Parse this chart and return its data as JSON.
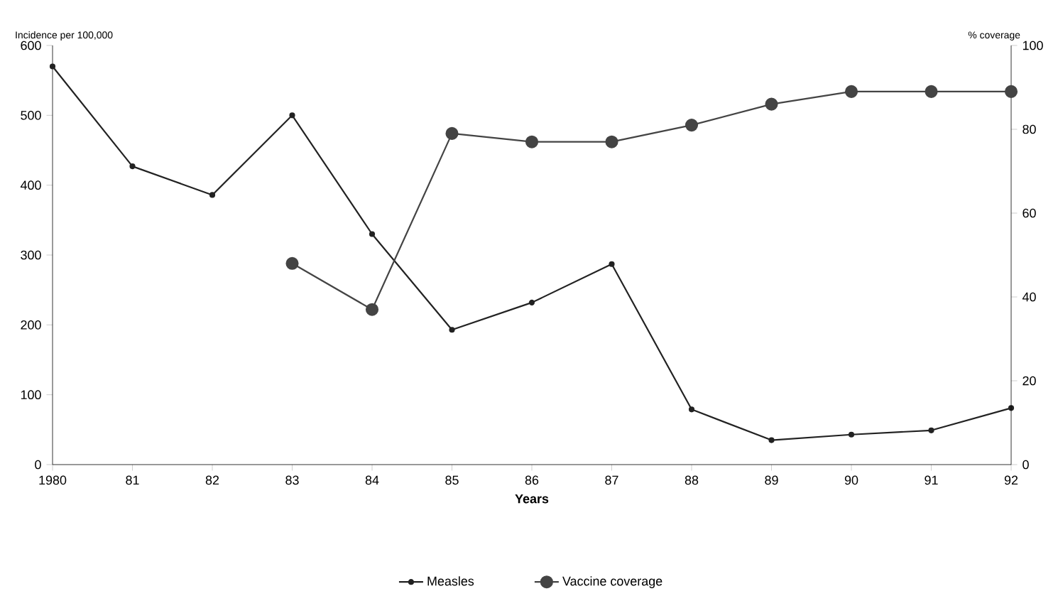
{
  "chart_data": {
    "type": "line",
    "xlabel": "Years",
    "ylabel": "Incidence per 100,000",
    "y2label": "% coverage",
    "xlim": [
      1980,
      1992
    ],
    "xticks": [
      1980,
      {
        "value": 1981,
        "label": "81"
      },
      {
        "value": 1982,
        "label": "82"
      },
      {
        "value": 1983,
        "label": "83"
      },
      {
        "value": 1984,
        "label": "84"
      },
      {
        "value": 1985,
        "label": "85"
      },
      {
        "value": 1986,
        "label": "86"
      },
      {
        "value": 1987,
        "label": "87"
      },
      {
        "value": 1988,
        "label": "88"
      },
      {
        "value": 1989,
        "label": "89"
      },
      {
        "value": 1990,
        "label": "90"
      },
      {
        "value": 1991,
        "label": "91"
      },
      {
        "value": 1992,
        "label": "92"
      }
    ],
    "ylim": [
      0,
      600
    ],
    "yticks": [
      0,
      100,
      200,
      300,
      400,
      500,
      600
    ],
    "y2lim": [
      0,
      100
    ],
    "y2ticks": [
      0,
      20,
      40,
      60,
      80,
      100
    ],
    "grid": false,
    "legend": "bottom",
    "line_style": "solid",
    "series": [
      {
        "name": "Measles",
        "color": "#222222",
        "marker": "circle",
        "x": [
          1980,
          1981,
          1982,
          1983,
          1984,
          1985,
          1986,
          1987,
          1988,
          1989,
          1990,
          1991,
          1992
        ],
        "values": [
          570,
          427,
          386,
          500,
          330,
          193,
          232,
          287,
          79,
          35,
          43,
          49,
          81
        ]
      },
      {
        "name": "Vaccine coverage",
        "color": "#444444",
        "marker": "circle",
        "axis": "y2",
        "x": [
          1983,
          1984,
          1985,
          1986,
          1987,
          1988,
          1989,
          1990,
          1991,
          1992
        ],
        "values": [
          48,
          37,
          79,
          77,
          77,
          81,
          86,
          89,
          89,
          89
        ]
      }
    ]
  }
}
